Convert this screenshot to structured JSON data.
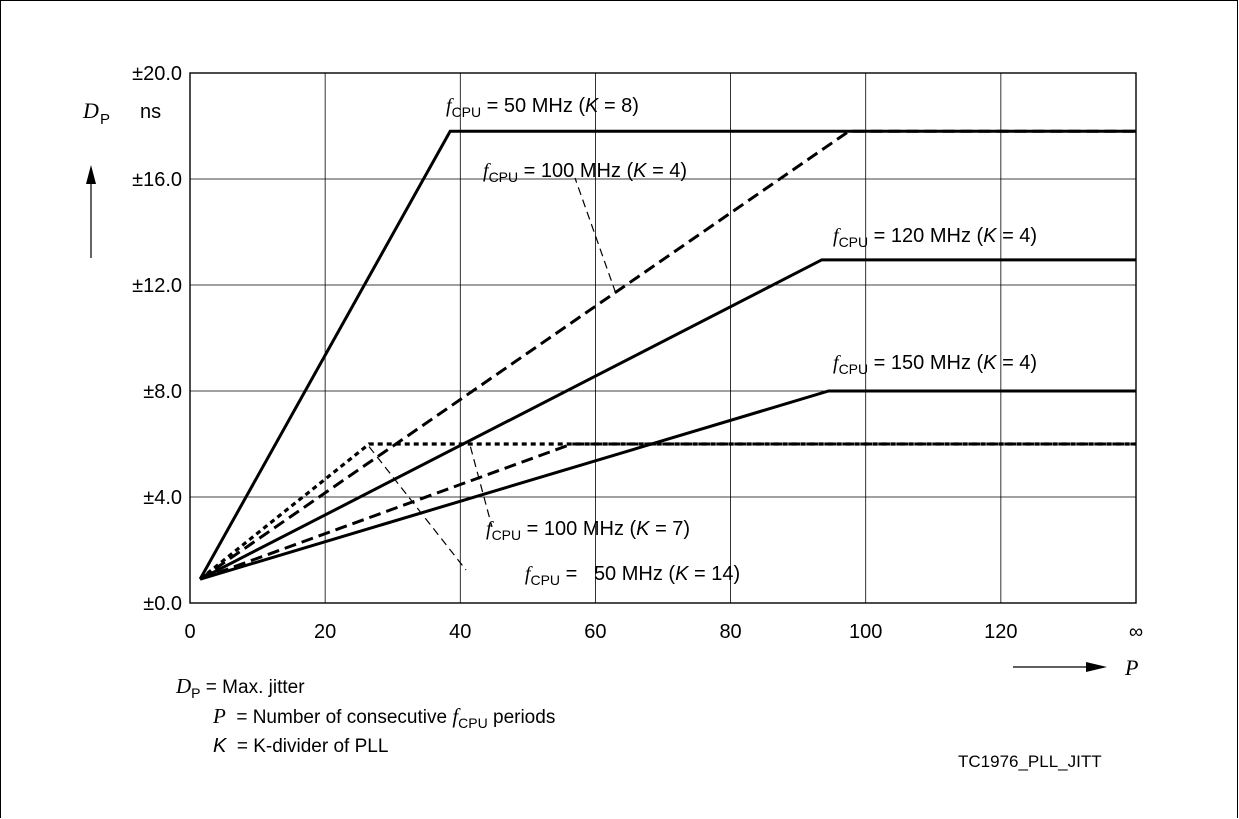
{
  "chart_data": {
    "type": "line",
    "x_tick_labels": [
      "0",
      "20",
      "40",
      "60",
      "80",
      "100",
      "120",
      "∞"
    ],
    "x_ticks": [
      0,
      20,
      40,
      60,
      80,
      100,
      120,
      140
    ],
    "y_tick_labels": [
      "±0.0",
      "±4.0",
      "±8.0",
      "±12.0",
      "±16.0",
      "±20.0"
    ],
    "y_ticks": [
      0,
      4,
      8,
      12,
      16,
      20
    ],
    "xlim": [
      0,
      140
    ],
    "ylim": [
      0,
      20
    ],
    "grid": true,
    "ylabel_symbol": "D",
    "ylabel_subscript": "P",
    "ylabel_unit": "ns",
    "xlabel_symbol": "P",
    "series": [
      {
        "f_prefix": "f",
        "sub": "CPU",
        "pre": " = 50 MHz (",
        "k": "K",
        "post": " = 8)",
        "style": "solid",
        "points": [
          [
            1.5,
            0.9
          ],
          [
            38.5,
            17.8
          ],
          [
            140,
            17.8
          ]
        ]
      },
      {
        "f_prefix": "f",
        "sub": "CPU",
        "pre": " = 100 MHz (",
        "k": "K",
        "post": " = 4)",
        "style": "dashed",
        "points": [
          [
            1.5,
            0.9
          ],
          [
            97.5,
            17.8
          ],
          [
            140,
            17.8
          ]
        ]
      },
      {
        "f_prefix": "f",
        "sub": "CPU",
        "pre": " = 120 MHz (",
        "k": "K",
        "post": " = 4)",
        "style": "solid",
        "points": [
          [
            1.5,
            0.9
          ],
          [
            93.5,
            12.95
          ],
          [
            140,
            12.95
          ]
        ]
      },
      {
        "f_prefix": "f",
        "sub": "CPU",
        "pre": " = 150 MHz (",
        "k": "K",
        "post": " = 4)",
        "style": "solid",
        "points": [
          [
            1.5,
            0.9
          ],
          [
            94.5,
            8.0
          ],
          [
            140,
            8.0
          ]
        ]
      },
      {
        "f_prefix": "f",
        "sub": "CPU",
        "pre": " = 100 MHz (",
        "k": "K",
        "post": " = 7)",
        "style": "dotted",
        "points": [
          [
            1.5,
            0.9
          ],
          [
            26.5,
            6.0
          ],
          [
            140,
            6.0
          ]
        ]
      },
      {
        "f_prefix": "f",
        "sub": "CPU",
        "pre": " =   50 MHz (",
        "k": "K",
        "post": " = 14)",
        "style": "dashed",
        "points": [
          [
            1.5,
            0.9
          ],
          [
            56.5,
            6.0
          ],
          [
            140,
            6.0
          ]
        ]
      }
    ],
    "notes": [
      {
        "sym": "D",
        "sub": "P",
        "text": " = Max. jitter"
      },
      {
        "sym": "P",
        "sub": "",
        "text": "  = Number of consecutive ",
        "f": "f",
        "fsub": "CPU",
        "tail": " periods"
      },
      {
        "sym": "K",
        "sub": "",
        "text": "  = K-divider of PLL"
      }
    ],
    "figure_id": "TC1976_PLL_JITT"
  }
}
